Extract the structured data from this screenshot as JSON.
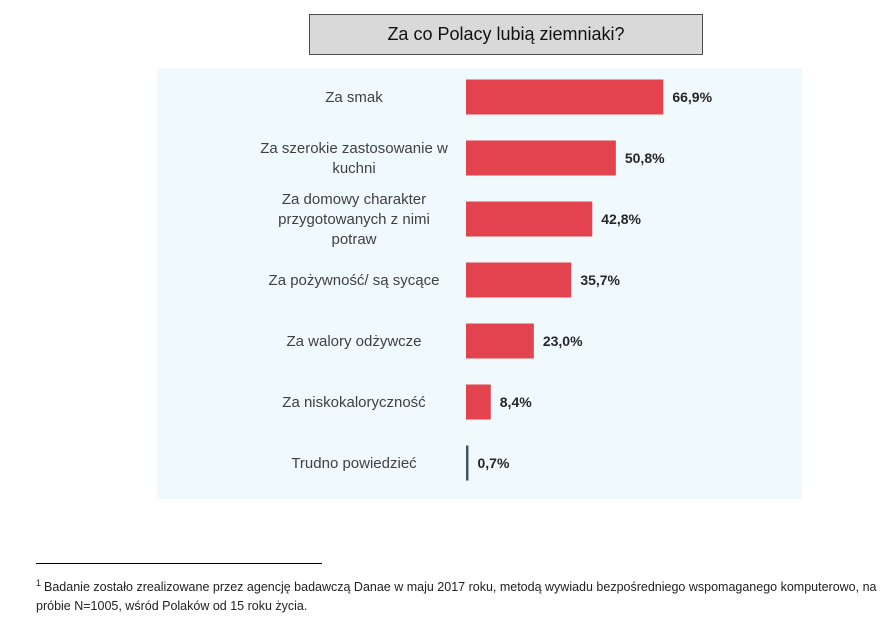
{
  "title": "Za co Polacy lubią ziemniaki?",
  "chart_data": {
    "type": "bar",
    "orientation": "horizontal",
    "title": "Za co Polacy lubią ziemniaki?",
    "categories": [
      [
        "Za smak"
      ],
      [
        "Za szerokie zastosowanie w",
        "kuchni"
      ],
      [
        "Za domowy charakter",
        "przygotowanych z nimi",
        "potraw"
      ],
      [
        "Za pożywność/ są sycące"
      ],
      [
        "Za walory odżywcze"
      ],
      [
        "Za niskokaloryczność"
      ],
      [
        "Trudno powiedzieć"
      ]
    ],
    "values": [
      66.9,
      50.8,
      42.8,
      35.7,
      23.0,
      8.4,
      0.7
    ],
    "value_labels": [
      "66,9%",
      "50,8%",
      "42,8%",
      "35,7%",
      "23,0%",
      "8,4%",
      "0,7%"
    ],
    "bar_colors": [
      "#e2434f",
      "#e2434f",
      "#e2434f",
      "#e2434f",
      "#e2434f",
      "#e2434f",
      "#44546a"
    ],
    "xlim": [
      0,
      100
    ],
    "grid": false,
    "legend": "none"
  },
  "footnote": {
    "marker": "1",
    "text": "Badanie zostało zrealizowane przez agencję badawczą Danae w maju 2017 roku, metodą wywiadu bezpośredniego wspomaganego komputerowo, na próbie N=1005, wśród Polaków od 15 roku życia."
  }
}
